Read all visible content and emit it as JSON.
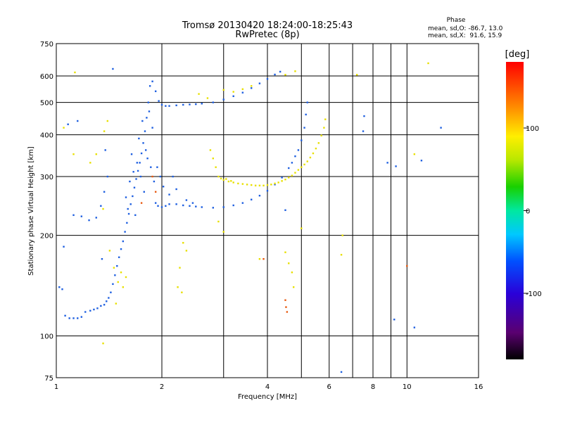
{
  "chart_data": {
    "type": "scatter",
    "title": "Tromsø 20130420 18:24:00-18:25:43",
    "subtitle": "RwPretec (8p)",
    "xlabel": "Frequency [MHz]",
    "ylabel": "Stationary phase Virtual Height [km]",
    "x_scale": "log",
    "y_scale": "log",
    "xlim": [
      1,
      16
    ],
    "ylim": [
      75,
      750
    ],
    "x_ticks": [
      1,
      2,
      4,
      6,
      8,
      10,
      16
    ],
    "x_tick_labels": [
      "1",
      "2",
      "4",
      "6",
      "8",
      "10",
      "16"
    ],
    "x_grid": [
      2,
      3,
      4,
      5,
      6,
      7,
      8,
      9,
      10
    ],
    "y_ticks": [
      75,
      100,
      200,
      300,
      400,
      500,
      600,
      750
    ],
    "y_tick_labels": [
      "75",
      "100",
      "200",
      "300",
      "400",
      "500",
      "600",
      "750"
    ],
    "grid": true,
    "phase_stats": {
      "title": "Phase",
      "o_line": "mean, sd,O: -86.7, 13.0",
      "x_line": "mean, sd,X:  91.6, 15.9"
    },
    "colorbar": {
      "unit": "[deg]",
      "range": [
        -180,
        180
      ],
      "ticks": [
        100,
        0,
        -100
      ],
      "tick_labels": [
        "100",
        "0",
        "-100"
      ]
    },
    "series": [
      {
        "phase": "O",
        "color": "#1e5fe0",
        "points": [
          [
            1.02,
            140
          ],
          [
            1.04,
            138
          ],
          [
            1.06,
            115
          ],
          [
            1.09,
            113
          ],
          [
            1.12,
            113
          ],
          [
            1.15,
            113
          ],
          [
            1.18,
            114
          ],
          [
            1.21,
            118
          ],
          [
            1.25,
            119
          ],
          [
            1.28,
            120
          ],
          [
            1.31,
            121
          ],
          [
            1.34,
            123
          ],
          [
            1.37,
            124
          ],
          [
            1.39,
            127
          ],
          [
            1.41,
            130
          ],
          [
            1.43,
            135
          ],
          [
            1.45,
            143
          ],
          [
            1.47,
            152
          ],
          [
            1.49,
            162
          ],
          [
            1.51,
            172
          ],
          [
            1.53,
            182
          ],
          [
            1.55,
            192
          ],
          [
            1.57,
            205
          ],
          [
            1.59,
            218
          ],
          [
            1.61,
            232
          ],
          [
            1.63,
            248
          ],
          [
            1.65,
            262
          ],
          [
            1.67,
            278
          ],
          [
            1.69,
            295
          ],
          [
            1.71,
            312
          ],
          [
            1.73,
            330
          ],
          [
            1.75,
            352
          ],
          [
            1.77,
            378
          ],
          [
            1.79,
            410
          ],
          [
            1.81,
            450
          ],
          [
            1.83,
            500
          ],
          [
            1.85,
            560
          ],
          [
            1.88,
            578
          ],
          [
            1.92,
            540
          ],
          [
            1.96,
            505
          ],
          [
            2.0,
            492
          ],
          [
            2.05,
            488
          ],
          [
            2.1,
            488
          ],
          [
            2.2,
            490
          ],
          [
            2.3,
            492
          ],
          [
            2.4,
            493
          ],
          [
            2.5,
            494
          ],
          [
            2.6,
            496
          ],
          [
            2.8,
            500
          ],
          [
            3.0,
            510
          ],
          [
            3.2,
            522
          ],
          [
            3.4,
            535
          ],
          [
            3.6,
            552
          ],
          [
            3.8,
            570
          ],
          [
            4.0,
            588
          ],
          [
            4.2,
            606
          ],
          [
            4.35,
            618
          ],
          [
            1.58,
            260
          ],
          [
            1.62,
            290
          ],
          [
            1.66,
            310
          ],
          [
            1.7,
            330
          ],
          [
            1.74,
            300
          ],
          [
            1.78,
            270
          ],
          [
            1.82,
            340
          ],
          [
            1.86,
            320
          ],
          [
            1.9,
            290
          ],
          [
            1.94,
            320
          ],
          [
            1.98,
            300
          ],
          [
            2.02,
            280
          ],
          [
            1.64,
            350
          ],
          [
            1.72,
            390
          ],
          [
            1.8,
            360
          ],
          [
            1.88,
            420
          ],
          [
            1.76,
            440
          ],
          [
            1.84,
            470
          ],
          [
            1.6,
            240
          ],
          [
            1.68,
            230
          ],
          [
            1.92,
            250
          ],
          [
            1.95,
            245
          ],
          [
            2.0,
            243
          ],
          [
            2.05,
            245
          ],
          [
            2.1,
            248
          ],
          [
            2.2,
            248
          ],
          [
            2.3,
            246
          ],
          [
            2.4,
            245
          ],
          [
            2.5,
            244
          ],
          [
            2.6,
            243
          ],
          [
            2.8,
            242
          ],
          [
            3.0,
            243
          ],
          [
            3.2,
            246
          ],
          [
            3.4,
            250
          ],
          [
            3.6,
            256
          ],
          [
            3.8,
            263
          ],
          [
            4.0,
            272
          ],
          [
            4.2,
            284
          ],
          [
            4.4,
            298
          ],
          [
            4.6,
            318
          ],
          [
            4.8,
            345
          ],
          [
            5.0,
            385
          ],
          [
            5.1,
            420
          ],
          [
            5.15,
            460
          ],
          [
            5.2,
            500
          ],
          [
            4.9,
            360
          ],
          [
            4.7,
            330
          ],
          [
            1.12,
            230
          ],
          [
            1.18,
            228
          ],
          [
            1.24,
            222
          ],
          [
            1.3,
            226
          ],
          [
            1.34,
            245
          ],
          [
            1.37,
            270
          ],
          [
            1.38,
            360
          ],
          [
            1.4,
            300
          ],
          [
            1.35,
            170
          ],
          [
            1.05,
            185
          ],
          [
            1.15,
            440
          ],
          [
            1.45,
            630
          ],
          [
            1.08,
            430
          ],
          [
            2.2,
            275
          ],
          [
            2.1,
            265
          ],
          [
            2.15,
            300
          ],
          [
            2.35,
            255
          ],
          [
            2.45,
            250
          ],
          [
            4.5,
            238
          ],
          [
            6.5,
            78
          ],
          [
            7.5,
            410
          ],
          [
            7.55,
            455
          ],
          [
            8.8,
            330
          ],
          [
            9.3,
            322
          ],
          [
            9.2,
            112
          ],
          [
            10.5,
            106
          ],
          [
            11.0,
            335
          ],
          [
            12.5,
            420
          ]
        ]
      },
      {
        "phase": "X",
        "color": "#e8e000",
        "points": [
          [
            2.9,
            300
          ],
          [
            2.95,
            296
          ],
          [
            3.0,
            293
          ],
          [
            3.1,
            290
          ],
          [
            3.2,
            288
          ],
          [
            3.3,
            286
          ],
          [
            3.4,
            285
          ],
          [
            3.5,
            284
          ],
          [
            3.6,
            283
          ],
          [
            3.7,
            282
          ],
          [
            3.8,
            282
          ],
          [
            3.9,
            282
          ],
          [
            4.0,
            283
          ],
          [
            4.1,
            284
          ],
          [
            4.2,
            286
          ],
          [
            4.3,
            288
          ],
          [
            4.4,
            291
          ],
          [
            4.5,
            294
          ],
          [
            4.6,
            298
          ],
          [
            4.7,
            302
          ],
          [
            4.8,
            308
          ],
          [
            4.9,
            314
          ],
          [
            5.0,
            320
          ],
          [
            5.1,
            326
          ],
          [
            5.2,
            333
          ],
          [
            5.3,
            342
          ],
          [
            5.4,
            352
          ],
          [
            5.5,
            364
          ],
          [
            5.6,
            378
          ],
          [
            5.7,
            398
          ],
          [
            5.8,
            420
          ],
          [
            5.85,
            445
          ],
          [
            2.85,
            320
          ],
          [
            2.8,
            340
          ],
          [
            2.75,
            360
          ],
          [
            3.05,
            295
          ],
          [
            3.15,
            291
          ],
          [
            3.0,
            545
          ],
          [
            3.2,
            538
          ],
          [
            3.4,
            548
          ],
          [
            3.6,
            560
          ],
          [
            2.7,
            515
          ],
          [
            2.55,
            530
          ],
          [
            4.5,
            605
          ],
          [
            4.8,
            620
          ],
          [
            1.13,
            615
          ],
          [
            1.37,
            410
          ],
          [
            1.4,
            440
          ],
          [
            1.25,
            330
          ],
          [
            1.3,
            350
          ],
          [
            1.36,
            240
          ],
          [
            1.42,
            180
          ],
          [
            1.46,
            160
          ],
          [
            1.5,
            145
          ],
          [
            1.53,
            155
          ],
          [
            1.48,
            125
          ],
          [
            1.55,
            140
          ],
          [
            1.58,
            150
          ],
          [
            2.3,
            190
          ],
          [
            2.35,
            180
          ],
          [
            2.25,
            160
          ],
          [
            2.22,
            140
          ],
          [
            2.28,
            135
          ],
          [
            2.9,
            220
          ],
          [
            3.0,
            205
          ],
          [
            3.8,
            170
          ],
          [
            4.6,
            165
          ],
          [
            4.7,
            155
          ],
          [
            4.75,
            140
          ],
          [
            4.5,
            178
          ],
          [
            5.0,
            210
          ],
          [
            1.36,
            95
          ],
          [
            1.12,
            350
          ],
          [
            10.5,
            350
          ],
          [
            11.5,
            655
          ],
          [
            6.55,
            200
          ],
          [
            6.5,
            175
          ],
          [
            7.2,
            605
          ],
          [
            1.05,
            420
          ]
        ]
      },
      {
        "phase": "O-X",
        "color": "#e85a10",
        "points": [
          [
            4.5,
            128
          ],
          [
            4.52,
            122
          ],
          [
            4.55,
            118
          ],
          [
            3.9,
            170
          ],
          [
            10.0,
            162
          ],
          [
            1.88,
            300
          ],
          [
            1.92,
            270
          ],
          [
            1.75,
            250
          ]
        ]
      }
    ]
  }
}
